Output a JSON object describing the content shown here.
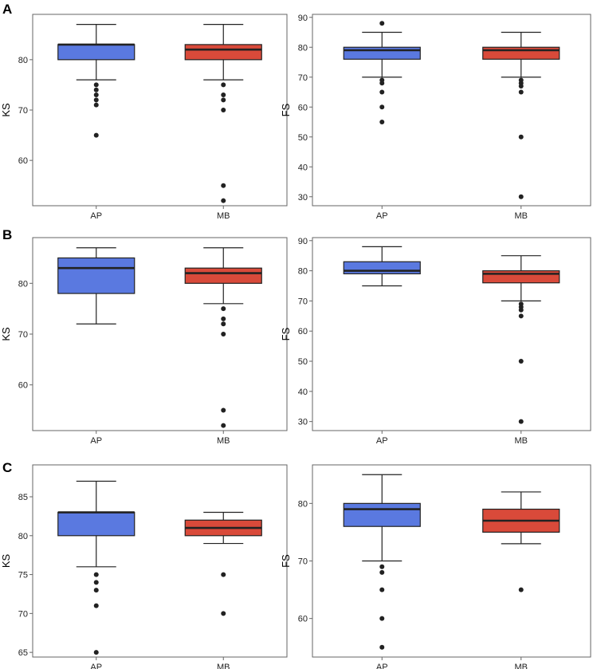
{
  "panel_labels": [
    "A",
    "B",
    "C"
  ],
  "colors": {
    "AP": "#5a79e0",
    "MB": "#d94a3a",
    "frame": "#666666",
    "line": "#222222",
    "point": "#222222"
  },
  "chart_data": [
    {
      "panel": "A",
      "type": "boxplot",
      "ylabel": "KS",
      "xlabel": "",
      "categories": [
        "AP",
        "MB"
      ],
      "ylim": [
        51,
        89
      ],
      "ticks": [
        60,
        70,
        80
      ],
      "boxes": [
        {
          "category": "AP",
          "whisker_low": 76,
          "q1": 80,
          "median": 83,
          "q3": 83,
          "whisker_high": 87,
          "outliers": [
            75,
            74,
            73,
            72,
            71,
            65
          ]
        },
        {
          "category": "MB",
          "whisker_low": 76,
          "q1": 80,
          "median": 82,
          "q3": 83,
          "whisker_high": 87,
          "outliers": [
            75,
            73,
            72,
            70,
            55,
            52
          ]
        }
      ]
    },
    {
      "panel": "A",
      "type": "boxplot",
      "ylabel": "FS",
      "xlabel": "",
      "categories": [
        "AP",
        "MB"
      ],
      "ylim": [
        27,
        91
      ],
      "ticks": [
        30,
        40,
        50,
        60,
        70,
        80,
        90
      ],
      "boxes": [
        {
          "category": "AP",
          "whisker_low": 70,
          "q1": 76,
          "median": 79,
          "q3": 80,
          "whisker_high": 85,
          "outliers": [
            88,
            69,
            68,
            65,
            60,
            55
          ]
        },
        {
          "category": "MB",
          "whisker_low": 70,
          "q1": 76,
          "median": 79,
          "q3": 80,
          "whisker_high": 85,
          "outliers": [
            69,
            68,
            67,
            65,
            50,
            30
          ]
        }
      ]
    },
    {
      "panel": "B",
      "type": "boxplot",
      "ylabel": "KS",
      "xlabel": "",
      "categories": [
        "AP",
        "MB"
      ],
      "ylim": [
        51,
        89
      ],
      "ticks": [
        60,
        70,
        80
      ],
      "boxes": [
        {
          "category": "AP",
          "whisker_low": 72,
          "q1": 78,
          "median": 83,
          "q3": 85,
          "whisker_high": 87,
          "outliers": []
        },
        {
          "category": "MB",
          "whisker_low": 76,
          "q1": 80,
          "median": 82,
          "q3": 83,
          "whisker_high": 87,
          "outliers": [
            75,
            73,
            72,
            70,
            55,
            52
          ]
        }
      ]
    },
    {
      "panel": "B",
      "type": "boxplot",
      "ylabel": "FS",
      "xlabel": "",
      "categories": [
        "AP",
        "MB"
      ],
      "ylim": [
        27,
        91
      ],
      "ticks": [
        30,
        40,
        50,
        60,
        70,
        80,
        90
      ],
      "boxes": [
        {
          "category": "AP",
          "whisker_low": 75,
          "q1": 79,
          "median": 80,
          "q3": 83,
          "whisker_high": 88,
          "outliers": []
        },
        {
          "category": "MB",
          "whisker_low": 70,
          "q1": 76,
          "median": 79,
          "q3": 80,
          "whisker_high": 85,
          "outliers": [
            69,
            68,
            67,
            65,
            50,
            30
          ]
        }
      ]
    },
    {
      "panel": "C",
      "type": "boxplot",
      "ylabel": "KS",
      "xlabel": "",
      "categories": [
        "AP",
        "MB"
      ],
      "ylim": [
        64.4,
        89.1
      ],
      "ticks": [
        65,
        70,
        75,
        80,
        85
      ],
      "boxes": [
        {
          "category": "AP",
          "whisker_low": 76,
          "q1": 80,
          "median": 83,
          "q3": 83,
          "whisker_high": 87,
          "outliers": [
            75,
            74,
            73,
            71,
            65
          ]
        },
        {
          "category": "MB",
          "whisker_low": 79,
          "q1": 80,
          "median": 81,
          "q3": 82,
          "whisker_high": 83,
          "outliers": [
            75,
            70
          ]
        }
      ]
    },
    {
      "panel": "C",
      "type": "boxplot",
      "ylabel": "FS",
      "xlabel": "",
      "categories": [
        "AP",
        "MB"
      ],
      "ylim": [
        53.3,
        86.7
      ],
      "ticks": [
        60,
        70,
        80
      ],
      "boxes": [
        {
          "category": "AP",
          "whisker_low": 70,
          "q1": 76,
          "median": 79,
          "q3": 80,
          "whisker_high": 85,
          "outliers": [
            69,
            68,
            65,
            60,
            55
          ]
        },
        {
          "category": "MB",
          "whisker_low": 73,
          "q1": 75,
          "median": 77,
          "q3": 79,
          "whisker_high": 82,
          "outliers": [
            65
          ]
        }
      ]
    }
  ]
}
